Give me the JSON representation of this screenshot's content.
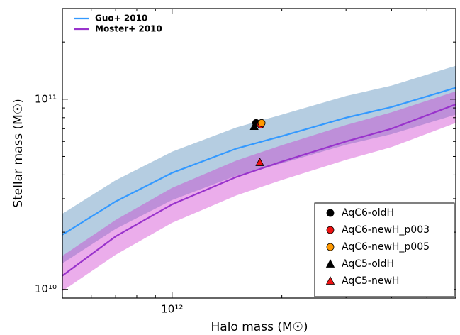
{
  "chart_data": {
    "type": "scatter",
    "x_label": "Halo mass (M☉)",
    "y_label": "Stellar mass (M☉)",
    "xscale": "log",
    "yscale": "log",
    "xlim": [
      500000000000,
      6000000000000
    ],
    "ylim": [
      9000000000,
      300000000000
    ],
    "xticks": [
      {
        "value": 1000000000000,
        "label": "10¹²"
      }
    ],
    "yticks": [
      {
        "value": 10000000000,
        "label": "10¹⁰"
      },
      {
        "value": 100000000000,
        "label": "10¹¹"
      }
    ],
    "x_minor_ticks": [
      600000000000,
      700000000000,
      800000000000,
      900000000000,
      2000000000000,
      3000000000000,
      4000000000000,
      5000000000000,
      6000000000000
    ],
    "y_minor_ticks": [
      20000000000,
      30000000000,
      40000000000,
      50000000000,
      60000000000,
      70000000000,
      80000000000,
      90000000000,
      200000000000,
      300000000000
    ],
    "line_legend": "upper left",
    "point_legend": "lower right",
    "lines": [
      {
        "name": "Guo+ 2010",
        "color": "#3399ff",
        "band_color": "#4682b4",
        "x": [
          500000000000,
          700000000000,
          1000000000000,
          1500000000000,
          2000000000000,
          3000000000000,
          4000000000000,
          6000000000000
        ],
        "values": [
          19400000000,
          29000000000,
          41000000000,
          55000000000,
          64000000000,
          80000000000,
          91000000000,
          115000000000
        ],
        "upper": [
          25000000000,
          37500000000,
          53000000000,
          71000000000,
          83000000000,
          104000000000,
          118000000000,
          150000000000
        ],
        "lower": [
          13700000000,
          20800000000,
          29500000000,
          39600000000,
          46000000000,
          57600000000,
          65500000000,
          83000000000
        ]
      },
      {
        "name": "Moster+ 2010",
        "color": "#9933cc",
        "band_color": "#cc33cc",
        "x": [
          500000000000,
          700000000000,
          1000000000000,
          1500000000000,
          2000000000000,
          3000000000000,
          4000000000000,
          6000000000000
        ],
        "values": [
          11800000000,
          19000000000,
          28000000000,
          39000000000,
          47000000000,
          60000000000,
          70000000000,
          94000000000
        ],
        "upper": [
          15000000000,
          23200000000,
          34200000000,
          47600000000,
          57300000000,
          73200000000,
          85400000000,
          110000000000
        ],
        "lower": [
          9800000000,
          15200000000,
          22400000000,
          31200000000,
          37600000000,
          48000000000,
          56000000000,
          75000000000
        ]
      }
    ],
    "series": [
      {
        "name": "AqC6-oldH",
        "color": "#000000",
        "marker": "circle",
        "x": [
          1700000000000
        ],
        "values": [
          75000000000
        ]
      },
      {
        "name": "AqC6-newH_p003",
        "color": "#ee1111",
        "marker": "circle",
        "x": [
          1750000000000
        ],
        "values": [
          73500000000
        ]
      },
      {
        "name": "AqC6-newH_p005",
        "color": "#ff9900",
        "marker": "circle",
        "x": [
          1760000000000
        ],
        "values": [
          75000000000
        ]
      },
      {
        "name": "AqC5-oldH",
        "color": "#000000",
        "marker": "triangle",
        "x": [
          1680000000000
        ],
        "values": [
          72000000000
        ]
      },
      {
        "name": "AqC5-newH",
        "color": "#ee1111",
        "marker": "triangle",
        "x": [
          1740000000000
        ],
        "values": [
          46500000000
        ]
      }
    ]
  }
}
